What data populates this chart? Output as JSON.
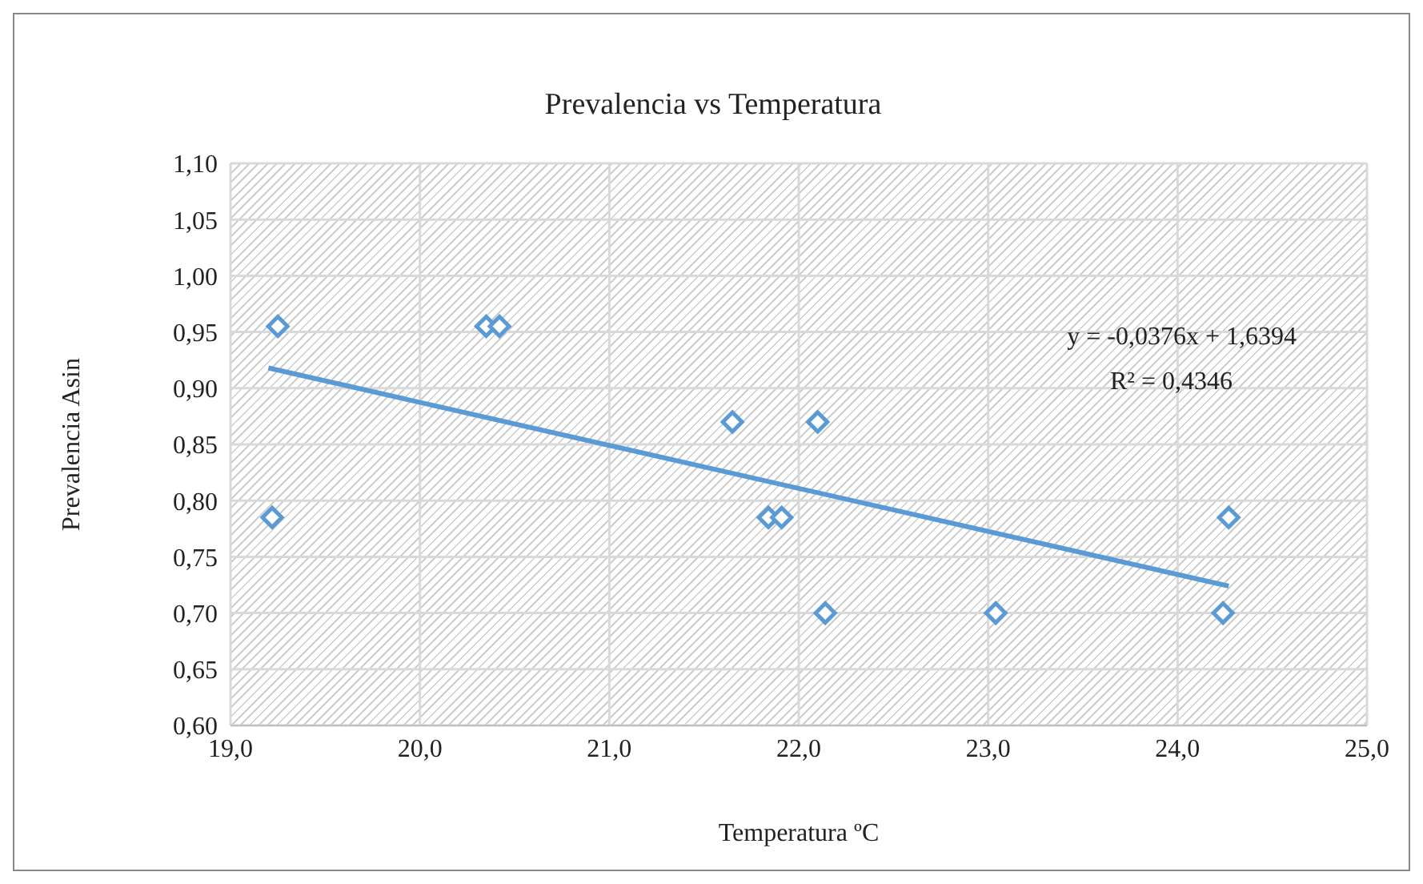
{
  "chart_data": {
    "type": "scatter",
    "title": "Prevalencia vs Temperatura",
    "xlabel": "Temperatura ºC",
    "ylabel": "Prevalencia Asin",
    "annotations": [
      "y = -0,0376x + 1,6394",
      "R² = 0,4346"
    ],
    "series": [
      {
        "type": "scatter",
        "color": "#5b9bd5",
        "marker": "diamond",
        "x": [
          19.25,
          19.22,
          20.35,
          20.42,
          21.65,
          22.1,
          21.84,
          21.91,
          22.14,
          23.04,
          24.24,
          24.27
        ],
        "values": [
          0.955,
          0.785,
          0.955,
          0.955,
          0.87,
          0.87,
          0.785,
          0.785,
          0.7,
          0.7,
          0.7,
          0.785
        ]
      },
      {
        "type": "line",
        "color": "#5b9bd5",
        "marker": "none",
        "x": [
          19.2,
          24.27
        ],
        "values": [
          0.918,
          0.724
        ]
      }
    ],
    "xlim": [
      19,
      25
    ],
    "xticks": [
      {
        "value": 19,
        "label": "19,0"
      },
      {
        "value": 20,
        "label": "20,0"
      },
      {
        "value": 21,
        "label": "21,0"
      },
      {
        "value": 22,
        "label": "22,0"
      },
      {
        "value": 23,
        "label": "23,0"
      },
      {
        "value": 24,
        "label": "24,0"
      },
      {
        "value": 25,
        "label": "25,0"
      }
    ],
    "ylim": [
      0.6,
      1.1
    ],
    "yticks": [
      {
        "value": 0.6,
        "label": "0,60"
      },
      {
        "value": 0.65,
        "label": "0,65"
      },
      {
        "value": 0.7,
        "label": "0,70"
      },
      {
        "value": 0.75,
        "label": "0,75"
      },
      {
        "value": 0.8,
        "label": "0,80"
      },
      {
        "value": 0.85,
        "label": "0,85"
      },
      {
        "value": 0.9,
        "label": "0,90"
      },
      {
        "value": 0.95,
        "label": "0,95"
      },
      {
        "value": 1.0,
        "label": "1,00"
      },
      {
        "value": 1.05,
        "label": "1,05"
      },
      {
        "value": 1.1,
        "label": "1,10"
      }
    ],
    "grid": true,
    "legend": false
  }
}
